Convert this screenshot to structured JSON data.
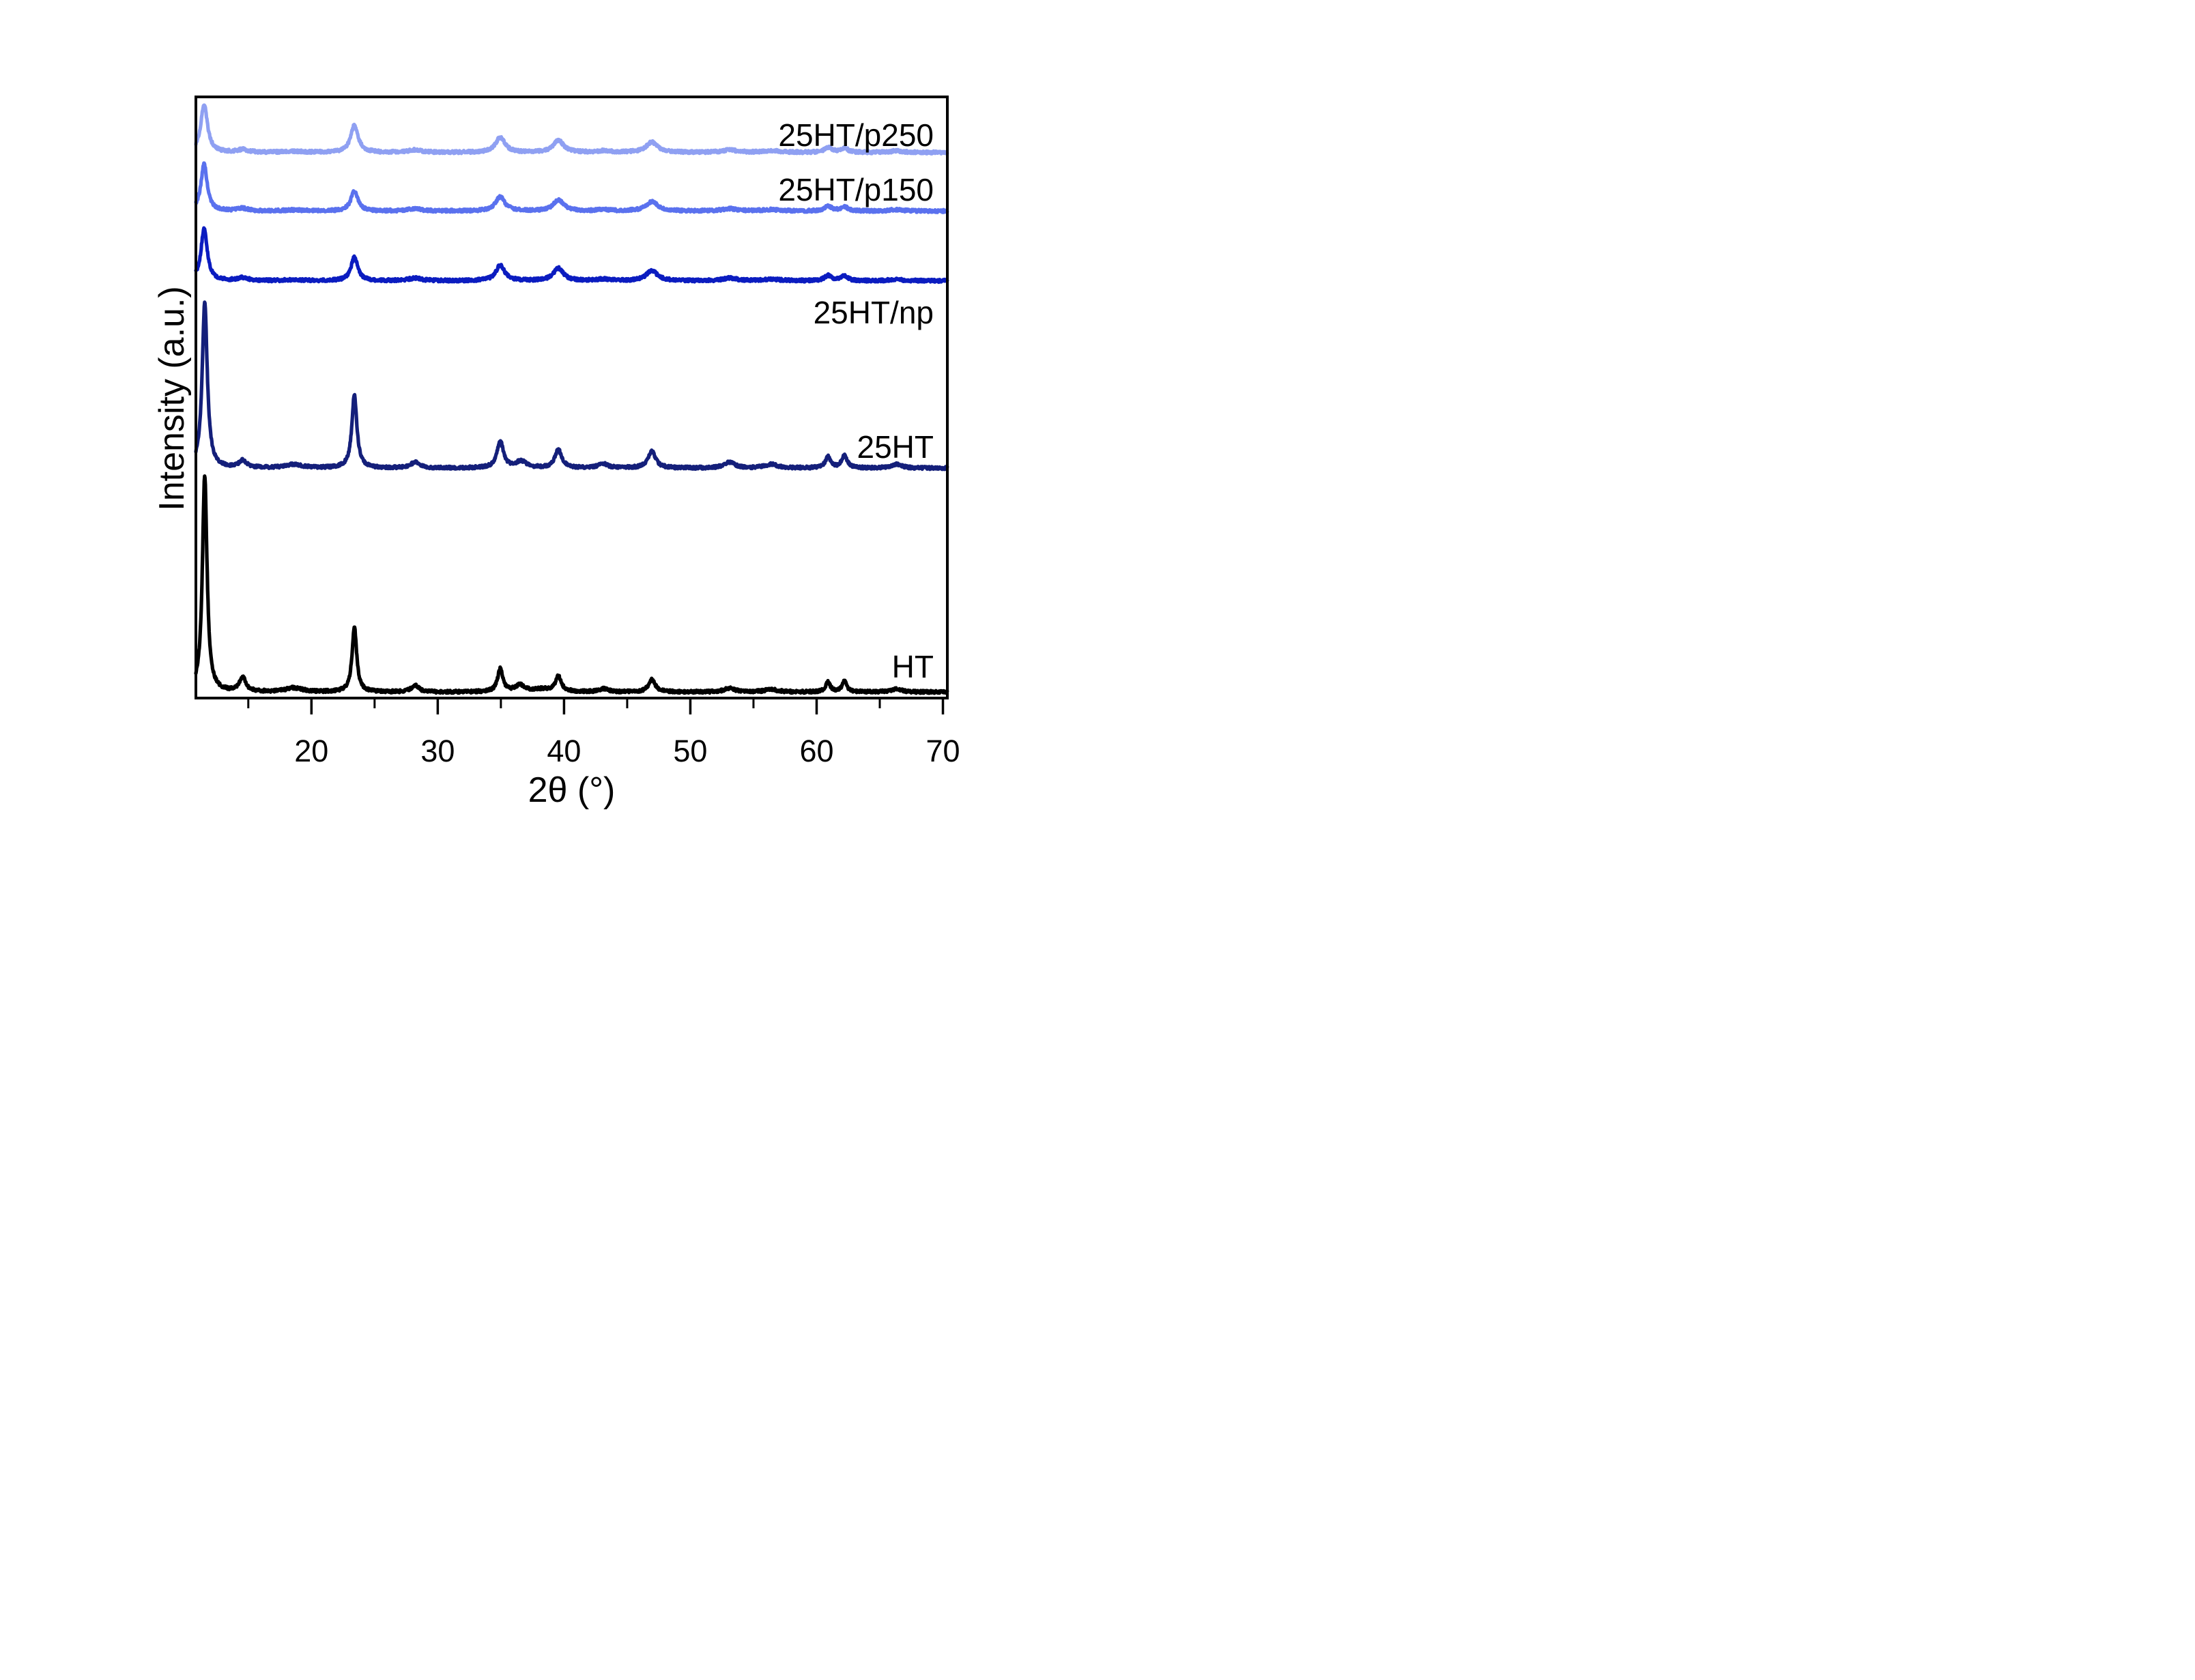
{
  "figure": {
    "background_color": "#ffffff",
    "axis_color": "#000000"
  },
  "chart_data": {
    "type": "line",
    "title": "",
    "xlabel": "2θ (°)",
    "ylabel": "Intensity (a.u.)",
    "xlim": [
      10.85,
      70.35
    ],
    "x_ticks_major": [
      20,
      30,
      40,
      50,
      60,
      70
    ],
    "x_tick_labels": [
      "20",
      "30",
      "40",
      "50",
      "60",
      "70"
    ],
    "x_ticks_minor": [
      15,
      25,
      35,
      45,
      55,
      65
    ],
    "y_ticks": [],
    "grid": false,
    "legend_position": "labels-inline-right",
    "description": "Stacked powder XRD patterns (intensity offset vertically), hydrotalcite-type samples",
    "series": [
      {
        "name": "25HT/p250",
        "color": "#8fa0f2",
        "baseline_frac": 0.0925,
        "amplitude_frac": 0.08,
        "peaks": [
          [
            11.5,
            1.0,
            0.32
          ],
          [
            14.55,
            0.055,
            0.5
          ],
          [
            18.6,
            0.02,
            0.9
          ],
          [
            23.4,
            0.56,
            0.36
          ],
          [
            28.2,
            0.05,
            0.6
          ],
          [
            34.95,
            0.31,
            0.45
          ],
          [
            39.55,
            0.25,
            0.5
          ],
          [
            43.1,
            0.03,
            0.6
          ],
          [
            46.95,
            0.21,
            0.55
          ],
          [
            53.1,
            0.05,
            0.7
          ],
          [
            56.4,
            0.035,
            0.8
          ],
          [
            60.9,
            0.1,
            0.35
          ],
          [
            62.2,
            0.085,
            0.35
          ],
          [
            66.3,
            0.03,
            0.6
          ]
        ]
      },
      {
        "name": "25HT/p150",
        "color": "#5a71ee",
        "baseline_frac": 0.19,
        "amplitude_frac": 0.078,
        "peaks": [
          [
            11.5,
            1.0,
            0.3
          ],
          [
            14.55,
            0.055,
            0.5
          ],
          [
            18.6,
            0.02,
            0.9
          ],
          [
            23.4,
            0.42,
            0.34
          ],
          [
            28.2,
            0.05,
            0.6
          ],
          [
            34.95,
            0.3,
            0.45
          ],
          [
            39.55,
            0.24,
            0.5
          ],
          [
            43.1,
            0.03,
            0.6
          ],
          [
            46.95,
            0.2,
            0.55
          ],
          [
            53.1,
            0.05,
            0.7
          ],
          [
            56.4,
            0.03,
            0.8
          ],
          [
            60.9,
            0.1,
            0.35
          ],
          [
            62.2,
            0.085,
            0.35
          ],
          [
            66.3,
            0.03,
            0.6
          ]
        ]
      },
      {
        "name": "25HT/np",
        "color": "#0b1cc0",
        "baseline_frac": 0.306,
        "amplitude_frac": 0.086,
        "peaks": [
          [
            11.5,
            1.0,
            0.3
          ],
          [
            14.55,
            0.055,
            0.5
          ],
          [
            18.6,
            0.02,
            0.9
          ],
          [
            23.4,
            0.46,
            0.32
          ],
          [
            28.2,
            0.05,
            0.6
          ],
          [
            34.95,
            0.3,
            0.42
          ],
          [
            39.55,
            0.24,
            0.48
          ],
          [
            43.1,
            0.03,
            0.6
          ],
          [
            46.95,
            0.2,
            0.52
          ],
          [
            53.1,
            0.05,
            0.7
          ],
          [
            56.4,
            0.03,
            0.8
          ],
          [
            60.9,
            0.1,
            0.33
          ],
          [
            62.2,
            0.09,
            0.33
          ],
          [
            66.3,
            0.03,
            0.6
          ]
        ]
      },
      {
        "name": "25HT",
        "color": "#141f7a",
        "baseline_frac": 0.6175,
        "amplitude_frac": 0.276,
        "peaks": [
          [
            11.55,
            1.0,
            0.24
          ],
          [
            14.55,
            0.042,
            0.35
          ],
          [
            18.6,
            0.02,
            0.8
          ],
          [
            23.4,
            0.44,
            0.24
          ],
          [
            28.2,
            0.035,
            0.4
          ],
          [
            34.95,
            0.16,
            0.3
          ],
          [
            36.6,
            0.04,
            0.5
          ],
          [
            39.55,
            0.11,
            0.32
          ],
          [
            43.1,
            0.025,
            0.45
          ],
          [
            46.95,
            0.1,
            0.36
          ],
          [
            53.1,
            0.034,
            0.5
          ],
          [
            56.4,
            0.022,
            0.6
          ],
          [
            60.9,
            0.068,
            0.25
          ],
          [
            62.2,
            0.076,
            0.25
          ],
          [
            66.3,
            0.022,
            0.5
          ]
        ]
      },
      {
        "name": "HT",
        "color": "#000000",
        "baseline_frac": 0.99,
        "amplitude_frac": 0.36,
        "peaks": [
          [
            11.55,
            1.0,
            0.22
          ],
          [
            14.55,
            0.065,
            0.3
          ],
          [
            18.6,
            0.018,
            0.8
          ],
          [
            23.4,
            0.3,
            0.22
          ],
          [
            28.2,
            0.03,
            0.35
          ],
          [
            34.95,
            0.105,
            0.25
          ],
          [
            36.5,
            0.03,
            0.45
          ],
          [
            38.3,
            0.012,
            0.9
          ],
          [
            39.55,
            0.068,
            0.28
          ],
          [
            43.1,
            0.015,
            0.4
          ],
          [
            46.95,
            0.058,
            0.32
          ],
          [
            53.1,
            0.018,
            0.5
          ],
          [
            56.4,
            0.012,
            0.6
          ],
          [
            60.9,
            0.045,
            0.22
          ],
          [
            62.2,
            0.052,
            0.22
          ],
          [
            66.3,
            0.015,
            0.45
          ]
        ]
      }
    ]
  }
}
